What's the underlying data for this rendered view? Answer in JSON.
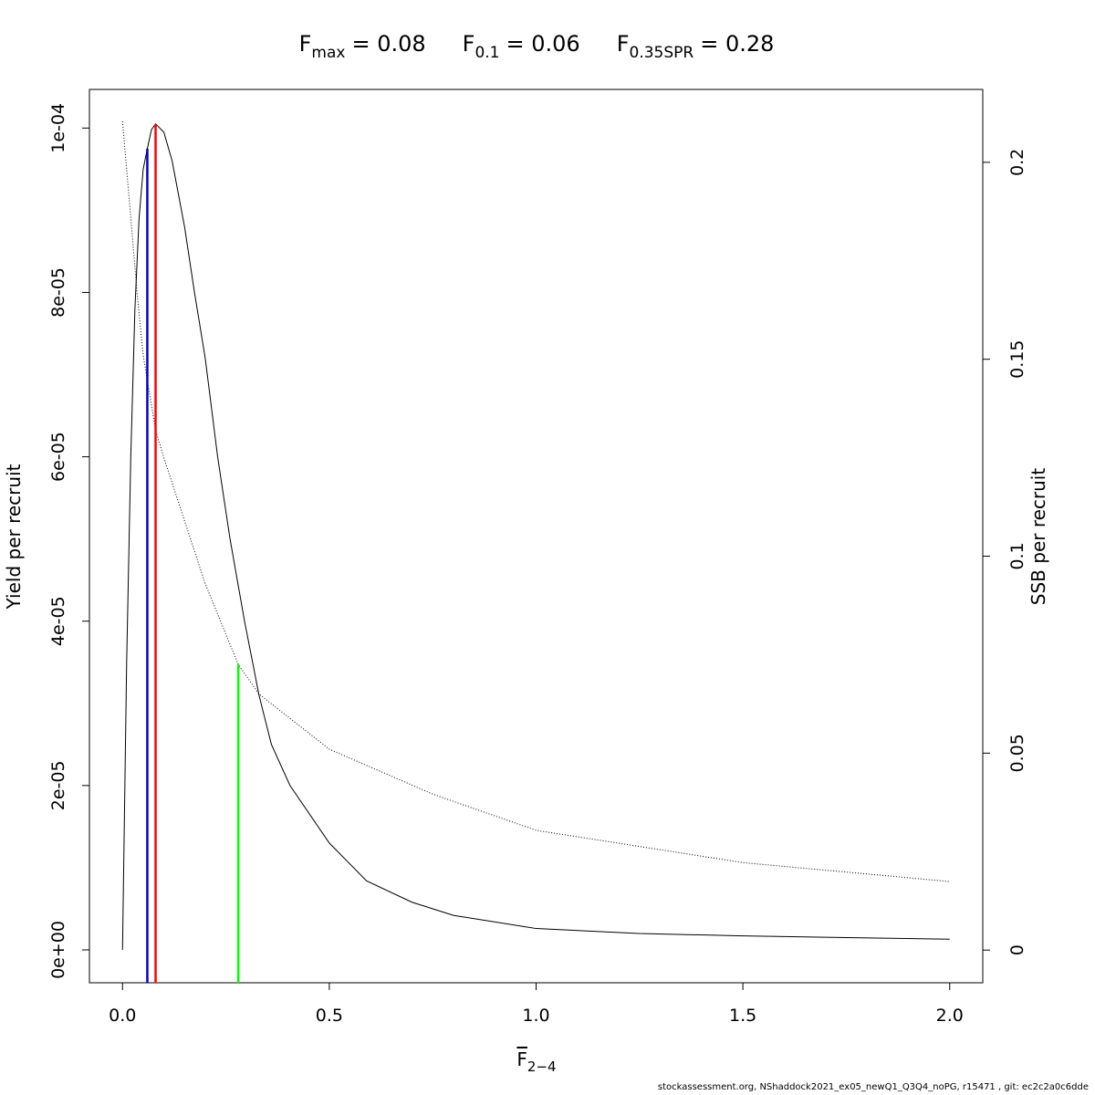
{
  "chart_data": {
    "type": "line",
    "reference_points": [
      {
        "symbol": "F",
        "subscript": "max",
        "value_label": "= 0.08",
        "x": 0.08,
        "y": 0.0001005,
        "axis": "y",
        "color": "#ff0000"
      },
      {
        "symbol": "F",
        "subscript": "0.1",
        "value_label": "= 0.06",
        "x": 0.06,
        "y": 9.75e-05,
        "axis": "y",
        "color": "#0000cd"
      },
      {
        "symbol": "F",
        "subscript": "0.35SPR",
        "value_label": "= 0.28",
        "x": 0.28,
        "y": 0.0725,
        "axis": "y2",
        "color": "#00ff00"
      }
    ],
    "xlabel": {
      "text": "F",
      "subscript": "2−4"
    },
    "ylabel": "Yield per recruit",
    "y2label": "SSB per recruit",
    "footer": "stockassessment.org, NShaddock2021_ex05_newQ1_Q3Q4_noPG, r15471 , git: ec2c2a0c6dde",
    "xlim": [
      -0.08,
      2.08
    ],
    "ylim": [
      -4e-06,
      0.0001047
    ],
    "y2lim": [
      -0.0083,
      0.2185
    ],
    "xticks": [
      {
        "value": 0,
        "label": "0.0"
      },
      {
        "value": 0.5,
        "label": "0.5"
      },
      {
        "value": 1,
        "label": "1.0"
      },
      {
        "value": 1.5,
        "label": "1.5"
      },
      {
        "value": 2,
        "label": "2.0"
      }
    ],
    "yticks": [
      {
        "value": 0,
        "label": "0e+00"
      },
      {
        "value": 2e-05,
        "label": "2e-05"
      },
      {
        "value": 4e-05,
        "label": "4e-05"
      },
      {
        "value": 6e-05,
        "label": "6e-05"
      },
      {
        "value": 8e-05,
        "label": "8e-05"
      },
      {
        "value": 0.0001,
        "label": "1e-04"
      }
    ],
    "y2ticks": [
      0,
      0.05,
      0.1,
      0.15,
      0.2
    ],
    "series": [
      {
        "name": "yield",
        "color": "#000000",
        "axis": "y",
        "x": [
          0,
          0.01,
          0.02,
          0.03,
          0.04,
          0.05,
          0.06,
          0.07,
          0.08,
          0.1,
          0.12,
          0.15,
          0.174,
          0.2,
          0.23,
          0.26,
          0.295,
          0.33,
          0.36,
          0.405,
          0.5,
          0.59,
          0.7,
          0.8,
          1.0,
          1.25,
          1.5,
          1.75,
          2.0
        ],
        "values": [
          0,
          3.5e-05,
          6e-05,
          7.8e-05,
          8.9e-05,
          9.5e-05,
          9.75e-05,
          9.98e-05,
          0.0001005,
          9.95e-05,
          9.6e-05,
          8.8e-05,
          8e-05,
          7.2e-05,
          6e-05,
          5e-05,
          4e-05,
          3.1e-05,
          2.5e-05,
          2e-05,
          1.3e-05,
          8.4e-06,
          5.8e-06,
          4.2e-06,
          2.6e-06,
          2e-06,
          1.7e-06,
          1.5e-06,
          1.3e-06
        ]
      },
      {
        "name": "ssb",
        "color": "#000000",
        "axis": "y2",
        "dashed": true,
        "x": [
          0,
          0.02,
          0.035,
          0.05,
          0.08,
          0.1,
          0.15,
          0.2,
          0.28,
          0.33,
          0.5,
          0.75,
          1.0,
          1.5,
          2.0
        ],
        "values": [
          0.2104,
          0.186,
          0.167,
          0.151,
          0.132,
          0.125,
          0.109,
          0.093,
          0.0725,
          0.065,
          0.051,
          0.0396,
          0.0304,
          0.0222,
          0.0174
        ]
      }
    ]
  }
}
